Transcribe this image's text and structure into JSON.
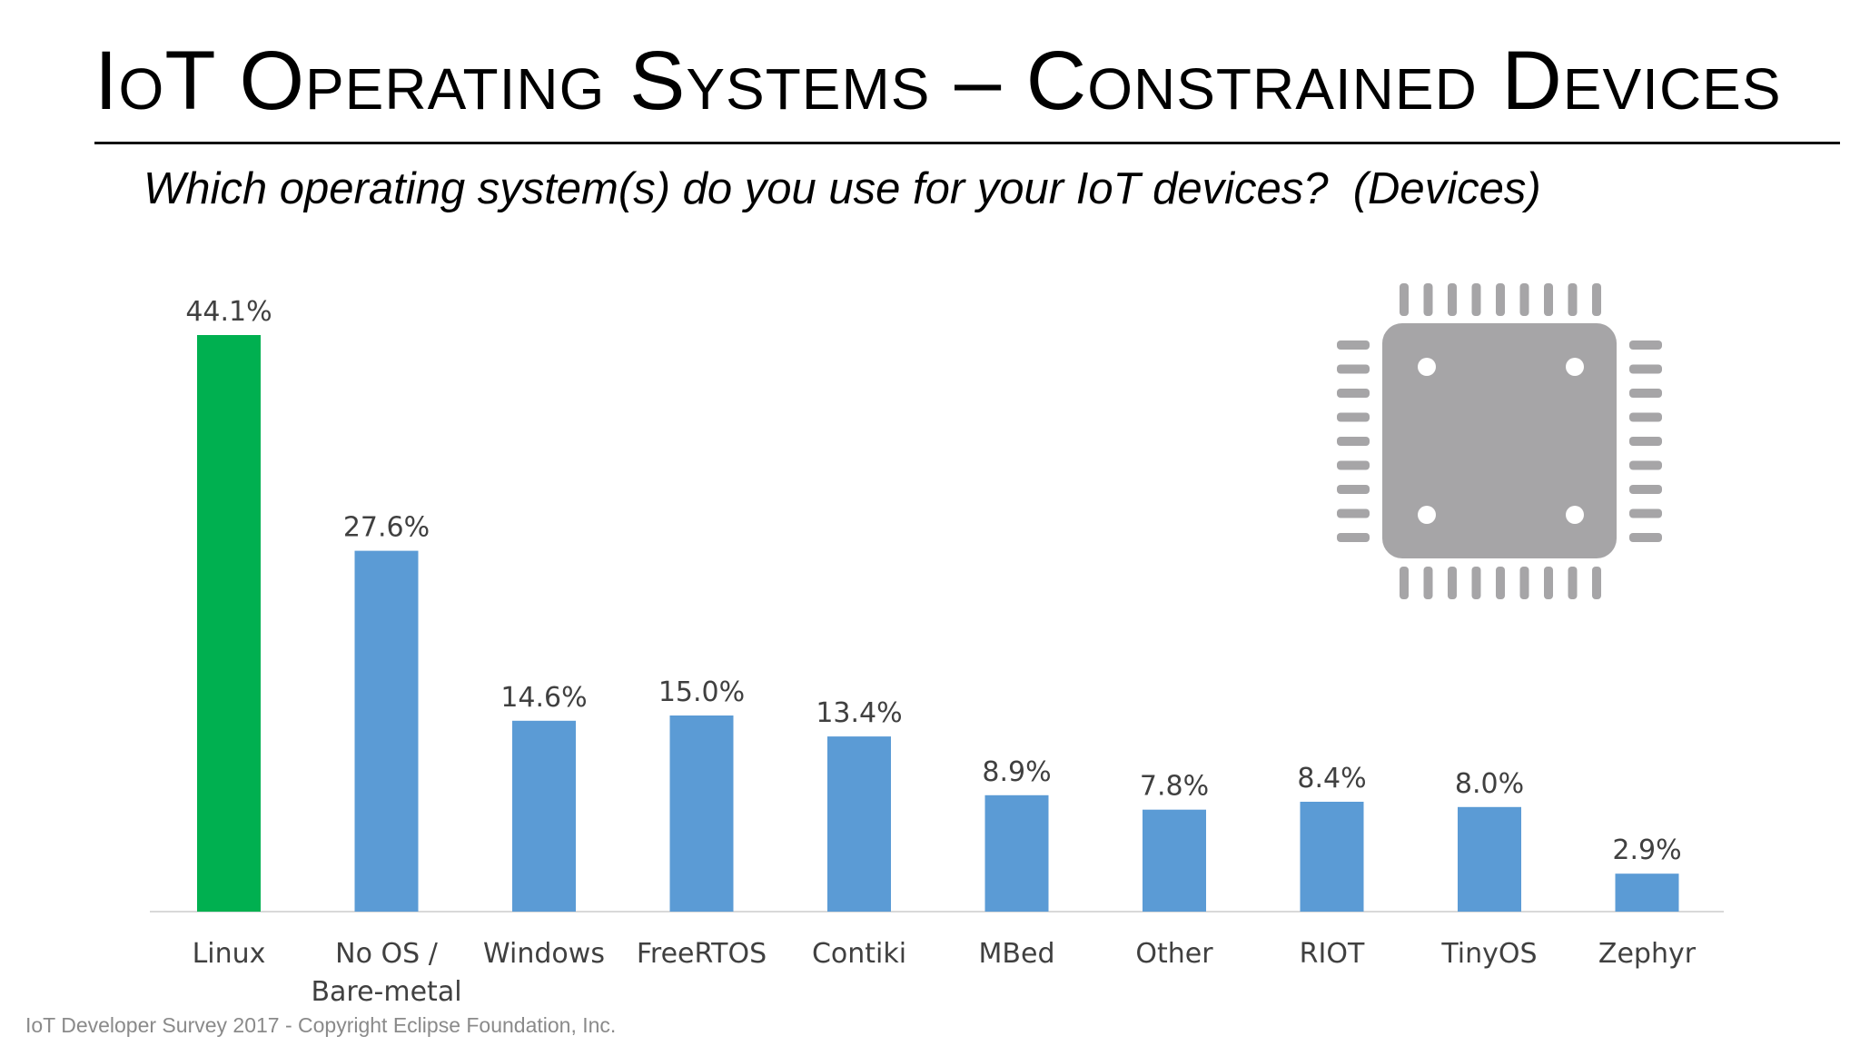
{
  "slide": {
    "title": "IoT Operating Systems – Constrained Devices",
    "subtitle": "Which operating system(s) do you use for your IoT devices?  (Devices)",
    "footer": "IoT Developer Survey 2017 - Copyright Eclipse Foundation, Inc.",
    "decoration_icon": "microchip-icon"
  },
  "chart_data": {
    "type": "bar",
    "categories": [
      "Linux",
      "No OS / Bare-metal",
      "Windows",
      "FreeRTOS",
      "Contiki",
      "MBed",
      "Other",
      "RIOT",
      "TinyOS",
      "Zephyr"
    ],
    "category_lines": [
      [
        "Linux"
      ],
      [
        "No OS /",
        "Bare-metal"
      ],
      [
        "Windows"
      ],
      [
        "FreeRTOS"
      ],
      [
        "Contiki"
      ],
      [
        "MBed"
      ],
      [
        "Other"
      ],
      [
        "RIOT"
      ],
      [
        "TinyOS"
      ],
      [
        "Zephyr"
      ]
    ],
    "values": [
      44.1,
      27.6,
      14.6,
      15.0,
      13.4,
      8.9,
      7.8,
      8.4,
      8.0,
      2.9
    ],
    "value_labels": [
      "44.1%",
      "27.6%",
      "14.6%",
      "15.0%",
      "13.4%",
      "8.9%",
      "7.8%",
      "8.4%",
      "8.0%",
      "2.9%"
    ],
    "unit": "%",
    "bar_colors": [
      "#00b050",
      "#5b9bd5",
      "#5b9bd5",
      "#5b9bd5",
      "#5b9bd5",
      "#5b9bd5",
      "#5b9bd5",
      "#5b9bd5",
      "#5b9bd5",
      "#5b9bd5"
    ],
    "title": "",
    "xlabel": "",
    "ylabel": "",
    "ylim": [
      0,
      44.1
    ],
    "grid": false,
    "legend": "none",
    "y_axis_visible": false
  }
}
